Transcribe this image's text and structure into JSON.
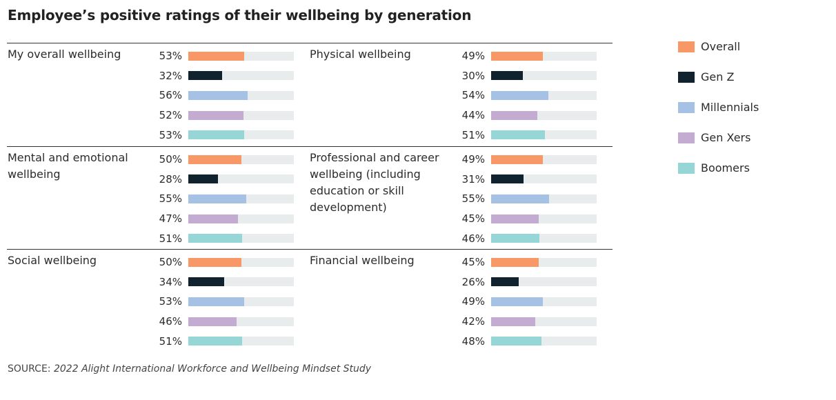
{
  "chart_data": {
    "type": "bar",
    "title": "Employee’s positive ratings of their wellbeing by generation",
    "orientation": "horizontal",
    "value_format": "percent",
    "xlim": [
      0,
      100
    ],
    "series_names": [
      "Overall",
      "Gen Z",
      "Millennials",
      "Gen Xers",
      "Boomers"
    ],
    "colors": {
      "Overall": "#F79866",
      "Gen Z": "#10222E",
      "Millennials": "#A5C1E3",
      "Gen Xers": "#C4ABD2",
      "Boomers": "#97D6D6",
      "track": "#E9ECEC"
    },
    "legend_position": "right",
    "panels": [
      {
        "category": "My overall wellbeing",
        "values": [
          53,
          32,
          56,
          52,
          53
        ]
      },
      {
        "category": "Physical wellbeing",
        "values": [
          49,
          30,
          54,
          44,
          51
        ]
      },
      {
        "category": "Mental and emotional wellbeing",
        "values": [
          50,
          28,
          55,
          47,
          51
        ]
      },
      {
        "category": "Professional and career wellbeing (including education or skill development)",
        "values": [
          49,
          31,
          55,
          45,
          46
        ]
      },
      {
        "category": "Social wellbeing",
        "values": [
          50,
          34,
          53,
          46,
          51
        ]
      },
      {
        "category": "Financial wellbeing",
        "values": [
          45,
          26,
          49,
          42,
          48
        ]
      }
    ]
  },
  "source": {
    "label": "SOURCE:",
    "text": "2022 Alight International Workforce and Wellbeing Mindset Study"
  }
}
